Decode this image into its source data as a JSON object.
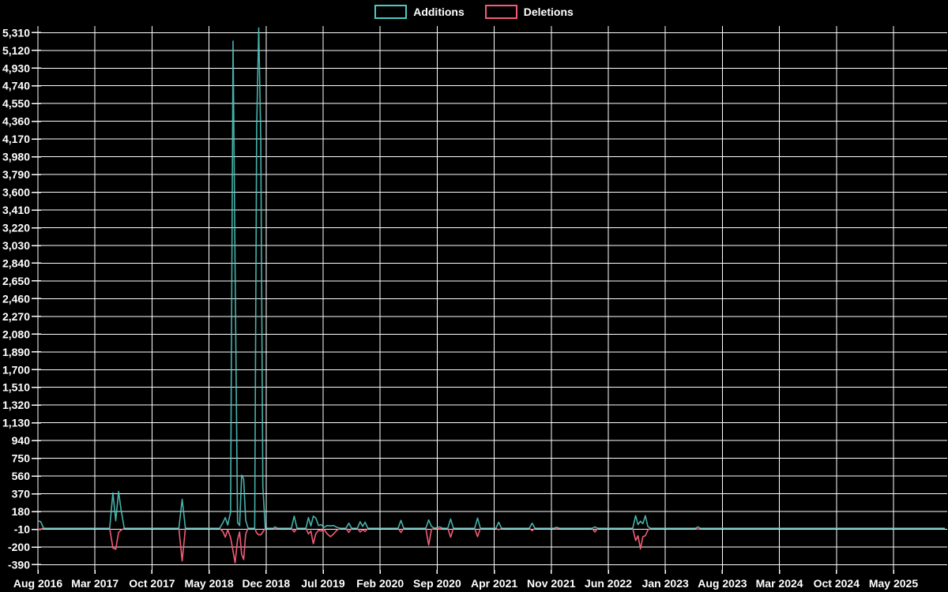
{
  "legend": {
    "items": [
      {
        "label": "Additions",
        "color": "#4ecac2"
      },
      {
        "label": "Deletions",
        "color": "#f25c78"
      }
    ]
  },
  "chart_data": {
    "type": "line",
    "title": "",
    "background": "#000000",
    "grid": true,
    "grid_color": "#ffffff",
    "text_color": "#ffffff",
    "series": [
      {
        "name": "Additions",
        "color": "#4ecac2"
      },
      {
        "name": "Deletions",
        "color": "#f25c78"
      }
    ],
    "x_axis": {
      "unit": "months_since_first_tick",
      "months_per_tick": 7,
      "tick_labels": [
        "Aug 2016",
        "Mar 2017",
        "Oct 2017",
        "May 2018",
        "Dec 2018",
        "Jul 2019",
        "Feb 2020",
        "Sep 2020",
        "Apr 2021",
        "Nov 2021",
        "Jun 2022",
        "Jan 2023",
        "Aug 2023",
        "Mar 2024",
        "Oct 2024",
        "May 2025"
      ]
    },
    "y_axis": {
      "min": -390,
      "max": 5310,
      "step": 190,
      "tick_labels": [
        "-390",
        "-200",
        "-10",
        "180",
        "370",
        "560",
        "750",
        "940",
        "1,130",
        "1,320",
        "1,510",
        "1,700",
        "1,890",
        "2,080",
        "2,270",
        "2,460",
        "2,650",
        "2,840",
        "3,030",
        "3,220",
        "3,410",
        "3,600",
        "3,790",
        "3,980",
        "4,170",
        "4,360",
        "4,550",
        "4,740",
        "4,930",
        "5,120",
        "5,310"
      ]
    },
    "points_format": [
      "months_since_Aug_2016",
      "additions",
      "deletions"
    ],
    "points": [
      [
        0,
        80,
        -10
      ],
      [
        0.35,
        70,
        -8
      ],
      [
        0.7,
        0,
        0
      ],
      [
        8.8,
        0,
        0
      ],
      [
        9.2,
        380,
        -210
      ],
      [
        9.55,
        80,
        -225
      ],
      [
        9.9,
        395,
        -45
      ],
      [
        10.2,
        200,
        -20
      ],
      [
        10.6,
        0,
        0
      ],
      [
        17.3,
        0,
        0
      ],
      [
        17.7,
        310,
        -350
      ],
      [
        18.1,
        0,
        0
      ],
      [
        22.3,
        0,
        0
      ],
      [
        22.7,
        60,
        -35
      ],
      [
        23.0,
        115,
        -95
      ],
      [
        23.3,
        35,
        -15
      ],
      [
        23.65,
        175,
        -100
      ],
      [
        23.95,
        5220,
        -245
      ],
      [
        24.2,
        2790,
        -370
      ],
      [
        24.5,
        60,
        -120
      ],
      [
        24.75,
        30,
        -40
      ],
      [
        25.0,
        570,
        -280
      ],
      [
        25.25,
        530,
        -335
      ],
      [
        25.5,
        85,
        -60
      ],
      [
        25.8,
        0,
        0
      ],
      [
        26.6,
        0,
        0
      ],
      [
        26.85,
        4300,
        -50
      ],
      [
        27.1,
        5360,
        -70
      ],
      [
        27.35,
        4160,
        -70
      ],
      [
        27.6,
        450,
        -40
      ],
      [
        27.9,
        0,
        0
      ],
      [
        28.9,
        0,
        0
      ],
      [
        29.1,
        15,
        -5
      ],
      [
        29.4,
        0,
        0
      ],
      [
        31.1,
        0,
        0
      ],
      [
        31.45,
        130,
        -40
      ],
      [
        31.8,
        0,
        0
      ],
      [
        32.9,
        0,
        0
      ],
      [
        33.2,
        115,
        -60
      ],
      [
        33.5,
        25,
        -30
      ],
      [
        33.8,
        130,
        -165
      ],
      [
        34.1,
        110,
        -60
      ],
      [
        34.45,
        30,
        -20
      ],
      [
        34.75,
        40,
        -30
      ],
      [
        35.1,
        10,
        -10
      ],
      [
        35.5,
        30,
        -60
      ],
      [
        35.9,
        25,
        -90
      ],
      [
        36.3,
        30,
        -60
      ],
      [
        36.7,
        10,
        -20
      ],
      [
        37.1,
        0,
        0
      ],
      [
        37.8,
        0,
        0
      ],
      [
        38.15,
        55,
        -45
      ],
      [
        38.5,
        0,
        0
      ],
      [
        39.2,
        0,
        0
      ],
      [
        39.55,
        70,
        -40
      ],
      [
        39.85,
        20,
        -15
      ],
      [
        40.15,
        65,
        -35
      ],
      [
        40.5,
        0,
        0
      ],
      [
        44.2,
        0,
        0
      ],
      [
        44.55,
        85,
        -45
      ],
      [
        44.9,
        0,
        0
      ],
      [
        47.6,
        0,
        0
      ],
      [
        47.95,
        90,
        -180
      ],
      [
        48.3,
        20,
        -10
      ],
      [
        48.7,
        0,
        0
      ],
      [
        49.3,
        15,
        -5
      ],
      [
        49.7,
        0,
        0
      ],
      [
        50.3,
        0,
        0
      ],
      [
        50.65,
        100,
        -95
      ],
      [
        51.0,
        0,
        0
      ],
      [
        53.6,
        0,
        0
      ],
      [
        53.95,
        110,
        -90
      ],
      [
        54.3,
        0,
        0
      ],
      [
        56.2,
        0,
        0
      ],
      [
        56.55,
        65,
        -15
      ],
      [
        56.9,
        0,
        0
      ],
      [
        60.3,
        0,
        0
      ],
      [
        60.65,
        55,
        -25
      ],
      [
        61.0,
        0,
        0
      ],
      [
        63.3,
        0,
        0
      ],
      [
        63.65,
        12,
        -4
      ],
      [
        64.0,
        0,
        0
      ],
      [
        68.0,
        0,
        0
      ],
      [
        68.35,
        15,
        -40
      ],
      [
        68.7,
        0,
        0
      ],
      [
        73.0,
        0,
        0
      ],
      [
        73.35,
        135,
        -130
      ],
      [
        73.65,
        40,
        -80
      ],
      [
        73.95,
        75,
        -220
      ],
      [
        74.25,
        50,
        -90
      ],
      [
        74.55,
        135,
        -80
      ],
      [
        74.85,
        20,
        -20
      ],
      [
        75.15,
        0,
        0
      ],
      [
        80.7,
        0,
        0
      ],
      [
        81.0,
        15,
        -10
      ],
      [
        81.3,
        0,
        0
      ],
      [
        111.3,
        0,
        0
      ]
    ]
  }
}
